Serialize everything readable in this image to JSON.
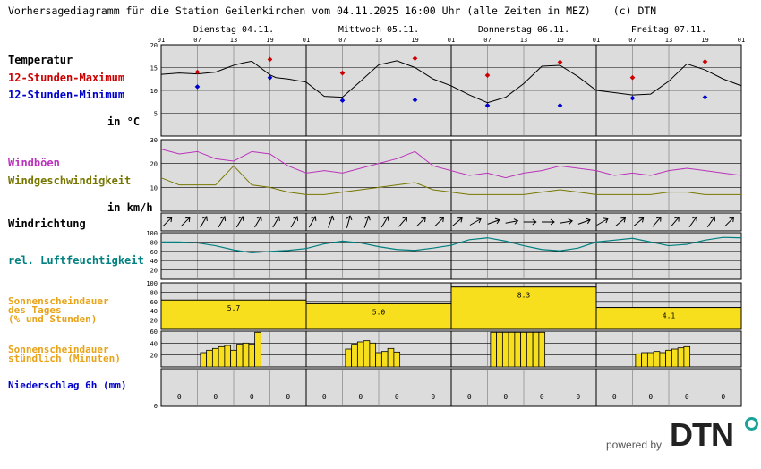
{
  "title": "Vorhersagediagramm für die Station Geilenkirchen vom 04.11.2025 16:00 Uhr (alle Zeiten in MEZ)",
  "copyright": "(c) DTN",
  "hour_ticks": [
    "01",
    "07",
    "13",
    "19"
  ],
  "end_tick": "01",
  "days": [
    "Dienstag 04.11.",
    "Mittwoch 05.11.",
    "Donnerstag 06.11.",
    "Freitag 07.11."
  ],
  "labels": {
    "temperature": "Temperatur",
    "max": "12-Stunden-Maximum",
    "min": "12-Stunden-Minimum",
    "temp_unit": "in °C",
    "gusts": "Windböen",
    "windspeed": "Windgeschwindigkeit",
    "wind_unit": "in km/h",
    "direction": "Windrichtung",
    "humidity": "rel. Luftfeuchtigkeit",
    "sun_daily_1": "Sonnenscheindauer",
    "sun_daily_2": "des Tages",
    "sun_daily_3": "(% und Stunden)",
    "sun_hourly_1": "Sonnenscheindauer",
    "sun_hourly_2": "stündlich (Minuten)",
    "precip": "Niederschlag 6h (mm)"
  },
  "colors": {
    "max": "#cc0000",
    "min": "#0000cc",
    "gusts": "#bb33bb",
    "windspeed": "#777700",
    "humidity": "#008080",
    "sun_label": "#e8a317",
    "sun_fill": "#f7df1e",
    "precip_label": "#0000cc",
    "panel_bg": "#dcdcdc"
  },
  "brand": {
    "powered_by": "powered by",
    "logo": "DTN"
  },
  "chart_data": [
    {
      "type": "line",
      "name": "temperature",
      "x_unit": "hours since 04.11. 01:00",
      "ylim": [
        0,
        20
      ],
      "yticks": [
        5,
        10,
        15,
        20
      ],
      "x": [
        0,
        3,
        6,
        9,
        12,
        13.5,
        15,
        18,
        19,
        21,
        24,
        27,
        30,
        33,
        36,
        39,
        42,
        45,
        48,
        51,
        54,
        57,
        60,
        63,
        66,
        69,
        72,
        75,
        78,
        81,
        84,
        87,
        90,
        93,
        96
      ],
      "values": [
        13.5,
        13.8,
        13.6,
        14,
        15.5,
        16,
        16.4,
        13.4,
        12.8,
        12.5,
        11.8,
        8.7,
        8.5,
        12,
        15.6,
        16.5,
        15,
        12.5,
        11,
        9,
        7.3,
        8.5,
        11.5,
        15.3,
        15.5,
        13,
        10,
        9.5,
        9,
        9.2,
        12,
        15.8,
        14.5,
        12.5,
        11
      ],
      "max_points": [
        {
          "x": 6,
          "y": 14
        },
        {
          "x": 18,
          "y": 16.8
        },
        {
          "x": 30,
          "y": 13.8
        },
        {
          "x": 42,
          "y": 17
        },
        {
          "x": 54,
          "y": 13.3
        },
        {
          "x": 66,
          "y": 16.2
        },
        {
          "x": 78,
          "y": 12.8
        },
        {
          "x": 90,
          "y": 16.3
        }
      ],
      "min_points": [
        {
          "x": 6,
          "y": 10.8
        },
        {
          "x": 18,
          "y": 12.8
        },
        {
          "x": 30,
          "y": 7.8
        },
        {
          "x": 42,
          "y": 7.9
        },
        {
          "x": 54,
          "y": 6.7
        },
        {
          "x": 66,
          "y": 6.7
        },
        {
          "x": 78,
          "y": 8.3
        },
        {
          "x": 90,
          "y": 8.5
        }
      ]
    },
    {
      "type": "line",
      "name": "wind",
      "ylim": [
        0,
        30
      ],
      "yticks": [
        10,
        20,
        30
      ],
      "x": [
        0,
        3,
        6,
        9,
        12,
        15,
        18,
        21,
        24,
        27,
        30,
        33,
        36,
        39,
        42,
        45,
        48,
        51,
        54,
        57,
        60,
        63,
        66,
        69,
        72,
        75,
        78,
        81,
        84,
        87,
        90,
        93,
        96
      ],
      "series": [
        {
          "name": "gusts",
          "values": [
            26,
            24,
            25,
            22,
            21,
            25,
            24,
            19,
            16,
            17,
            16,
            18,
            20,
            22,
            25,
            19,
            17,
            15,
            16,
            14,
            16,
            17,
            19,
            18,
            17,
            15,
            16,
            15,
            17,
            18,
            17,
            16,
            15
          ]
        },
        {
          "name": "windspeed",
          "values": [
            14,
            11,
            11,
            11,
            19,
            11,
            10,
            8,
            7,
            7,
            8,
            9,
            10,
            11,
            12,
            9,
            8,
            7,
            7,
            7,
            7,
            8,
            9,
            8,
            7,
            7,
            7,
            7,
            8,
            8,
            7,
            7,
            7
          ]
        }
      ]
    },
    {
      "type": "line",
      "name": "wind_direction",
      "x": [
        1,
        4,
        7,
        10,
        13,
        16,
        19,
        22,
        25,
        28,
        31,
        34,
        37,
        40,
        43,
        46,
        49,
        52,
        55,
        58,
        61,
        64,
        67,
        70,
        73,
        76,
        79,
        82,
        85,
        88,
        91,
        94
      ],
      "directions_deg": [
        225,
        225,
        210,
        210,
        210,
        210,
        210,
        210,
        210,
        200,
        195,
        200,
        210,
        220,
        225,
        225,
        230,
        240,
        250,
        260,
        270,
        270,
        260,
        250,
        240,
        230,
        230,
        220,
        220,
        215,
        215,
        225
      ]
    },
    {
      "type": "line",
      "name": "humidity",
      "ylim": [
        0,
        100
      ],
      "yticks": [
        20,
        40,
        60,
        80,
        100
      ],
      "x": [
        0,
        3,
        6,
        9,
        12,
        15,
        18,
        21,
        24,
        27,
        30,
        33,
        36,
        39,
        42,
        45,
        48,
        51,
        54,
        57,
        60,
        63,
        66,
        69,
        72,
        75,
        78,
        81,
        84,
        87,
        90,
        93,
        96
      ],
      "values": [
        80,
        80,
        78,
        72,
        63,
        57,
        60,
        62,
        66,
        76,
        82,
        78,
        70,
        64,
        62,
        67,
        73,
        85,
        89,
        82,
        72,
        64,
        61,
        67,
        80,
        84,
        88,
        80,
        72,
        75,
        84,
        90,
        89
      ]
    },
    {
      "type": "bar",
      "name": "sunshine_daily",
      "ylim": [
        0,
        100
      ],
      "yticks": [
        20,
        40,
        60,
        80,
        100
      ],
      "categories": [
        "04.11.",
        "05.11.",
        "06.11.",
        "07.11."
      ],
      "values": [
        63,
        55,
        91,
        47
      ],
      "hours": [
        "5.7",
        "5.0",
        "8.3",
        "4.1"
      ]
    },
    {
      "type": "bar",
      "name": "sunshine_hourly",
      "ylim": [
        0,
        60
      ],
      "yticks": [
        20,
        40,
        60
      ],
      "hours": [
        7,
        8,
        9,
        10,
        11,
        12,
        13,
        14,
        15,
        16,
        31,
        32,
        33,
        34,
        35,
        36,
        37,
        38,
        39,
        40,
        55,
        56,
        57,
        58,
        59,
        60,
        61,
        62,
        63,
        64,
        79,
        80,
        81,
        82,
        83,
        84,
        85,
        86,
        87,
        88
      ],
      "values": [
        24,
        28,
        31,
        34,
        36,
        28,
        38,
        40,
        38,
        58,
        30,
        38,
        42,
        44,
        40,
        24,
        26,
        31,
        25,
        0,
        58,
        58,
        58,
        58,
        58,
        58,
        58,
        58,
        58,
        0,
        22,
        24,
        24,
        26,
        24,
        28,
        30,
        32,
        34,
        0
      ]
    },
    {
      "type": "bar",
      "name": "precipitation",
      "x": [
        3,
        9,
        15,
        21,
        27,
        33,
        39,
        45,
        51,
        57,
        63,
        69,
        75,
        81,
        87,
        93
      ],
      "values": [
        "0",
        "0",
        "0",
        "0",
        "0",
        "0",
        "0",
        "0",
        "0",
        "0",
        "0",
        "0",
        "0",
        "0",
        "0",
        "0"
      ]
    }
  ]
}
